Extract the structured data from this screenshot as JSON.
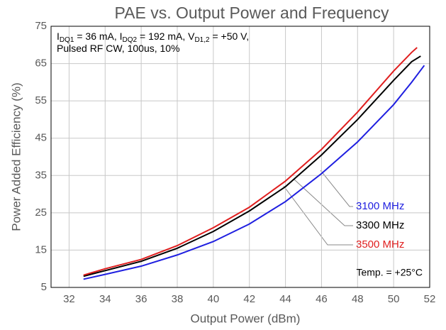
{
  "chart_data": {
    "type": "line",
    "title": "PAE vs. Output Power and Frequency",
    "xlabel": "Output Power (dBm)",
    "ylabel": "Power Added Efficiency (%)",
    "annotation": [
      [
        "I",
        "DQ1",
        " = 36 mA, I",
        "DQ2",
        " = 192 mA, V",
        "D1,2",
        " = +50 V,"
      ],
      [
        "Pulsed RF CW, 100us, 10%"
      ]
    ],
    "note": "Temp. = +25°C",
    "xlim": [
      31,
      52
    ],
    "xticks": [
      32,
      34,
      36,
      38,
      40,
      42,
      44,
      46,
      48,
      50,
      52
    ],
    "ylim": [
      5,
      75
    ],
    "yticks": [
      5,
      15,
      25,
      35,
      45,
      55,
      65,
      75
    ],
    "grid": true,
    "series": [
      {
        "name": "3100 MHz",
        "color": "#1f1fe0",
        "x": [
          32.8,
          34,
          36,
          38,
          40,
          42,
          44,
          46,
          48,
          50,
          51,
          51.7
        ],
        "values": [
          7.2,
          8.5,
          10.7,
          13.7,
          17.3,
          22,
          28,
          35.5,
          44,
          54,
          60,
          64.5
        ]
      },
      {
        "name": "3300 MHz",
        "color": "#000000",
        "x": [
          32.8,
          34,
          36,
          38,
          40,
          42,
          44,
          46,
          48,
          50,
          51,
          51.5
        ],
        "values": [
          8,
          9.5,
          12,
          15.5,
          20,
          25.5,
          32,
          40.5,
          50,
          60.5,
          65.5,
          67
        ]
      },
      {
        "name": "3500 MHz",
        "color": "#e01f1f",
        "x": [
          32.8,
          34,
          36,
          38,
          40,
          42,
          44,
          46,
          48,
          50,
          51,
          51.3
        ],
        "values": [
          8.3,
          10,
          12.5,
          16.2,
          21,
          26.5,
          33.5,
          42,
          52,
          63,
          68,
          69.3
        ]
      }
    ]
  }
}
